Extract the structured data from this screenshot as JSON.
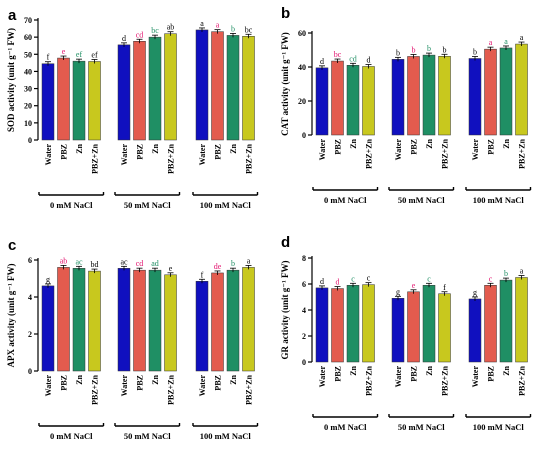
{
  "chart_data": [
    {
      "type": "bar",
      "panel": "a",
      "ylabel": "SOD activity (unit g⁻¹ FW)",
      "ylim": [
        0,
        70
      ],
      "yticks": [
        0,
        10,
        20,
        30,
        40,
        50,
        60,
        70
      ],
      "groups": [
        "0 mM NaCl",
        "50 mM NaCl",
        "100 mM NaCl"
      ],
      "categories": [
        "Water",
        "PBZ",
        "Zn",
        "PBZ+Zn"
      ],
      "values": [
        [
          44.5,
          47.8,
          46.0,
          45.8
        ],
        [
          55.5,
          57.6,
          60.0,
          62.0
        ],
        [
          64.2,
          63.2,
          61.0,
          60.5
        ]
      ],
      "letters": [
        [
          "f",
          "e",
          "ef",
          "ef"
        ],
        [
          "d",
          "cd",
          "bc",
          "ab"
        ],
        [
          "a",
          "a",
          "b",
          "bc"
        ]
      ]
    },
    {
      "type": "bar",
      "panel": "b",
      "ylabel": "CAT activity (unit g⁻¹ FW)",
      "ylim": [
        0,
        60
      ],
      "yticks": [
        0,
        20,
        40,
        60
      ],
      "groups": [
        "0 mM NaCl",
        "50 mM NaCl",
        "100 mM NaCl"
      ],
      "categories": [
        "Water",
        "PBZ",
        "Zn",
        "PBZ+Zn"
      ],
      "values": [
        [
          39.5,
          43.5,
          41.0,
          40.3
        ],
        [
          44.5,
          46.2,
          47.0,
          46.3
        ],
        [
          45.0,
          50.5,
          51.2,
          53.5
        ]
      ],
      "letters": [
        [
          "d",
          "bc",
          "cd",
          "d"
        ],
        [
          "b",
          "b",
          "b",
          "b"
        ],
        [
          "b",
          "a",
          "a",
          "a"
        ]
      ]
    },
    {
      "type": "bar",
      "panel": "c",
      "ylabel": "APX activity (unit g⁻¹ FW)",
      "ylim": [
        0,
        6
      ],
      "yticks": [
        0,
        2,
        4,
        6
      ],
      "groups": [
        "0 mM NaCl",
        "50 mM NaCl",
        "100 mM NaCl"
      ],
      "categories": [
        "Water",
        "PBZ",
        "Zn",
        "PBZ+Zn"
      ],
      "values": [
        [
          4.6,
          5.6,
          5.55,
          5.4
        ],
        [
          5.55,
          5.45,
          5.45,
          5.2
        ],
        [
          4.85,
          5.3,
          5.45,
          5.6
        ]
      ],
      "letters": [
        [
          "g",
          "ab",
          "ac",
          "bd"
        ],
        [
          "ac",
          "cd",
          "ad",
          "e"
        ],
        [
          "f",
          "de",
          "b",
          "a"
        ]
      ]
    },
    {
      "type": "bar",
      "panel": "d",
      "ylabel": "GR activity (unit g⁻¹ FW)",
      "ylim": [
        0,
        8
      ],
      "yticks": [
        0,
        2,
        4,
        6,
        8
      ],
      "groups": [
        "0 mM NaCl",
        "50 mM NaCl",
        "100 mM NaCl"
      ],
      "categories": [
        "Water",
        "PBZ",
        "Zn",
        "PBZ+Zn"
      ],
      "values": [
        [
          5.7,
          5.65,
          5.9,
          5.95
        ],
        [
          4.9,
          5.4,
          5.9,
          5.25
        ],
        [
          4.85,
          5.9,
          6.3,
          6.5
        ]
      ],
      "letters": [
        [
          "d",
          "d",
          "c",
          "c"
        ],
        [
          "g",
          "e",
          "c",
          "f"
        ],
        [
          "g",
          "c",
          "b",
          "a"
        ]
      ]
    }
  ],
  "series_colors": [
    "#1010bf",
    "#e35b4e",
    "#1f8f64",
    "#c8c81e"
  ],
  "letter_colors": [
    "#000000",
    "#e3126e",
    "#1f8f64",
    "#000000"
  ]
}
